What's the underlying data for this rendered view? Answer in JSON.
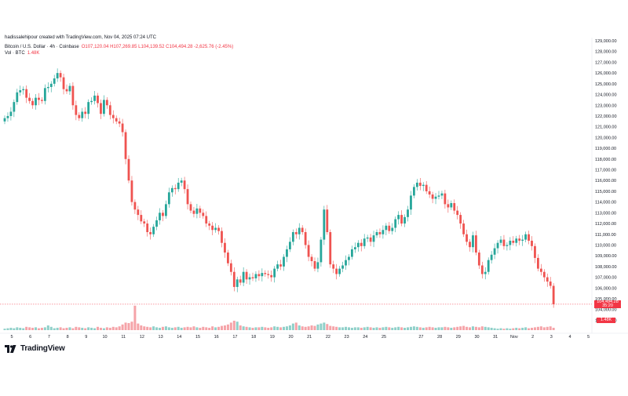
{
  "header": {
    "credit": "hadissalehipour created with TradingView.com, Nov 04, 2025 07:24 UTC",
    "symbol": "Bitcoin / U.S. Dollar · 4h · Coinbase",
    "ohlc": "O107,120.04 H107,269.85 L104,139.52 C104,494.28 -2,625.76 (-2.45%)",
    "volume_label": "Vol · BTC",
    "volume_value": "1.48K"
  },
  "price_badge": {
    "price": "104,494.28",
    "countdown": "35:20",
    "color": "#f23645"
  },
  "volume_badge": {
    "value": "1.48K",
    "color": "#f23645"
  },
  "branding": {
    "logo_text": "TradingView"
  },
  "colors": {
    "up": "#26a69a",
    "down": "#ef5350",
    "vol_up": "#8fd0c9",
    "vol_down": "#f5a3a8",
    "text": "#131722"
  },
  "chart_data": {
    "type": "candlestick",
    "y_axis": {
      "ticks": [
        103000,
        104000,
        105000,
        106000,
        107000,
        108000,
        109000,
        110000,
        111000,
        112000,
        113000,
        114000,
        115000,
        116000,
        117000,
        118000,
        119000,
        120000,
        121000,
        122000,
        123000,
        124000,
        125000,
        126000,
        127000,
        128000,
        129000
      ],
      "tick_labels": [
        "103,000.00",
        "104,000.00",
        "105,000.00",
        "106,000.00",
        "107,000.00",
        "108,000.00",
        "109,000.00",
        "110,000.00",
        "111,000.00",
        "112,000.00",
        "113,000.00",
        "114,000.00",
        "115,000.00",
        "116,000.00",
        "117,000.00",
        "118,000.00",
        "119,000.00",
        "120,000.00",
        "121,000.00",
        "122,000.00",
        "123,000.00",
        "124,000.00",
        "125,000.00",
        "126,000.00",
        "127,000.00",
        "128,000.00",
        "129,000.00"
      ]
    },
    "x_axis": {
      "labels": [
        "5",
        "6",
        "7",
        "8",
        "9",
        "10",
        "11",
        "12",
        "13",
        "14",
        "15",
        "16",
        "17",
        "18",
        "19",
        "20",
        "21",
        "22",
        "23",
        "24",
        "25",
        "27",
        "28",
        "29",
        "30",
        "31",
        "Nov",
        "2",
        "3",
        "4",
        "5"
      ],
      "label_candle_index": [
        0,
        6,
        12,
        18,
        24,
        30,
        36,
        42,
        48,
        54,
        60,
        66,
        72,
        78,
        84,
        90,
        96,
        102,
        108,
        114,
        120,
        132,
        138,
        144,
        150,
        156,
        162,
        168,
        174,
        180,
        186
      ]
    },
    "candles_close": [
      121800,
      122000,
      122400,
      123300,
      124200,
      124400,
      124500,
      123700,
      123400,
      123000,
      123700,
      123500,
      123400,
      124600,
      124700,
      125000,
      125500,
      126000,
      125600,
      124500,
      124300,
      124800,
      123000,
      122100,
      121800,
      122400,
      122200,
      123300,
      123400,
      123900,
      123200,
      122200,
      123500,
      123000,
      122100,
      121800,
      121500,
      121300,
      120500,
      118000,
      116000,
      114000,
      113300,
      112800,
      112200,
      112000,
      111200,
      111000,
      111700,
      112300,
      113000,
      112700,
      113800,
      114900,
      115300,
      115200,
      115800,
      116000,
      115200,
      113800,
      113200,
      112900,
      113400,
      113000,
      112700,
      112000,
      111800,
      111400,
      111600,
      111300,
      110200,
      109300,
      108300,
      107500,
      106100,
      106800,
      106500,
      107500,
      106800,
      107000,
      106900,
      107300,
      107100,
      107400,
      107300,
      107200,
      107000,
      107800,
      108200,
      108000,
      108900,
      109600,
      110300,
      111200,
      111000,
      111600,
      111200,
      110000,
      108900,
      108500,
      107800,
      108400,
      110500,
      113300,
      111200,
      108200,
      107800,
      107300,
      107800,
      108100,
      108600,
      108900,
      109600,
      109800,
      110200,
      109900,
      110600,
      110700,
      110300,
      110900,
      111200,
      111000,
      111400,
      111800,
      111300,
      111600,
      112400,
      112800,
      112000,
      112600,
      113300,
      114600,
      115400,
      115800,
      115500,
      115600,
      115000,
      114700,
      114300,
      114500,
      114600,
      114800,
      113800,
      113500,
      113900,
      113200,
      112800,
      112000,
      111000,
      110300,
      109800,
      110900,
      109300,
      108100,
      107300,
      107500,
      108600,
      109100,
      109700,
      110200,
      110500,
      109900,
      110000,
      110400,
      110200,
      110600,
      110400,
      110500,
      111000,
      110400,
      109900,
      108800,
      107800,
      107500,
      107000,
      106600,
      106200,
      104494
    ],
    "volume_relative": [
      0.15,
      0.2,
      0.25,
      0.2,
      0.3,
      0.25,
      0.2,
      0.35,
      0.3,
      0.25,
      0.3,
      0.2,
      0.25,
      0.3,
      0.5,
      0.35,
      0.2,
      0.25,
      0.3,
      0.2,
      0.25,
      0.3,
      0.2,
      0.35,
      0.3,
      0.25,
      0.2,
      0.3,
      0.25,
      0.2,
      0.35,
      0.25,
      0.2,
      0.3,
      0.25,
      0.35,
      0.3,
      0.4,
      0.6,
      0.8,
      0.75,
      0.9,
      2.6,
      0.7,
      0.5,
      0.4,
      0.35,
      0.3,
      0.4,
      0.3,
      0.25,
      0.35,
      0.4,
      0.3,
      0.25,
      0.3,
      0.35,
      0.25,
      0.3,
      0.35,
      0.3,
      0.4,
      0.3,
      0.25,
      0.35,
      0.3,
      0.25,
      0.4,
      0.3,
      0.35,
      0.45,
      0.5,
      0.6,
      0.8,
      1.0,
      0.9,
      0.5,
      0.4,
      0.35,
      0.3,
      0.25,
      0.3,
      0.3,
      0.35,
      0.3,
      0.25,
      0.3,
      0.4,
      0.35,
      0.3,
      0.35,
      0.4,
      0.5,
      0.7,
      0.8,
      0.5,
      0.4,
      0.35,
      0.4,
      0.5,
      0.45,
      0.6,
      0.7,
      0.8,
      0.65,
      0.45,
      0.4,
      0.35,
      0.3,
      0.3,
      0.35,
      0.3,
      0.25,
      0.3,
      0.3,
      0.25,
      0.3,
      0.35,
      0.3,
      0.25,
      0.3,
      0.25,
      0.3,
      0.35,
      0.3,
      0.25,
      0.3,
      0.35,
      0.3,
      0.25,
      0.3,
      0.35,
      0.4,
      0.35,
      0.3,
      0.25,
      0.3,
      0.35,
      0.3,
      0.25,
      0.3,
      0.3,
      0.35,
      0.3,
      0.25,
      0.3,
      0.35,
      0.4,
      0.45,
      0.35,
      0.3,
      0.4,
      0.35,
      0.3,
      0.4,
      0.35,
      0.3,
      0.25,
      0.2,
      0.15,
      0.2,
      0.15,
      0.2,
      0.15,
      0.2,
      0.25,
      0.2,
      0.25,
      0.3,
      0.2,
      0.25,
      0.3,
      0.35,
      0.4,
      0.3,
      0.35,
      0.4,
      0.25
    ]
  }
}
